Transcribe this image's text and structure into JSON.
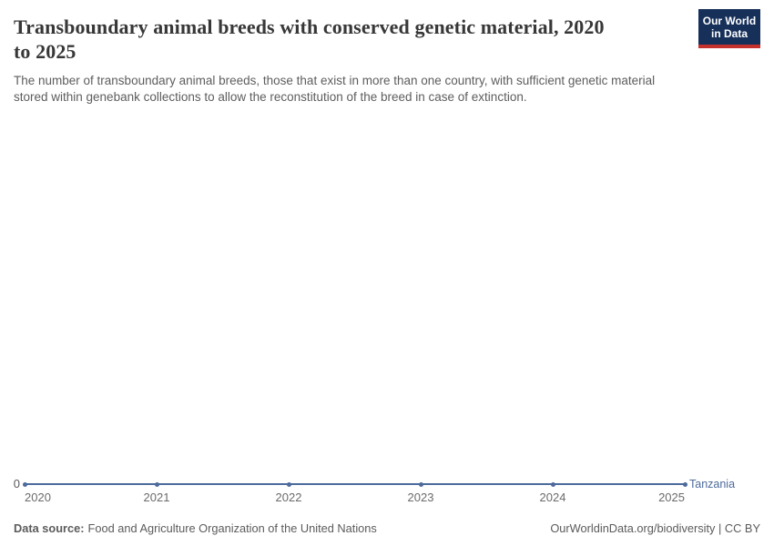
{
  "header": {
    "title_lines": [
      "Transboundary animal breeds with conserved genetic material, 2020",
      "to 2025"
    ],
    "subtitle_lines": [
      "The number of transboundary animal breeds, those that exist in more than one country, with sufficient genetic material",
      "stored within genebank collections to allow the reconstitution of the breed in case of extinction."
    ],
    "logo": {
      "line1": "Our World",
      "line2": "in Data"
    }
  },
  "chart_data": {
    "type": "line",
    "title": "Transboundary animal breeds with conserved genetic material, 2020 to 2025",
    "x": [
      2020,
      2021,
      2022,
      2023,
      2024,
      2025
    ],
    "series": [
      {
        "name": "Tanzania",
        "values": [
          0,
          0,
          0,
          0,
          0,
          0
        ],
        "color": "#4c6a9c"
      }
    ],
    "xlabel": "",
    "ylabel": "",
    "ylim": [
      0,
      0
    ],
    "y_axis_ticks": [
      "0"
    ],
    "grid": false,
    "legend_position": "right-end-of-line"
  },
  "chart": {
    "y_zero_label": "0",
    "entity_label": "Tanzania"
  },
  "footer": {
    "datasource_label": "Data source:",
    "datasource_value": "Food and Agriculture Organization of the United Nations",
    "right": "OurWorldinData.org/biodiversity | CC BY"
  },
  "colors": {
    "line": "#4c6a9c",
    "logo_bg": "#16305a",
    "logo_bar": "#c5312d",
    "title": "#373737",
    "subtitle": "#5d5d5d",
    "footer": "#5b5b5b"
  }
}
